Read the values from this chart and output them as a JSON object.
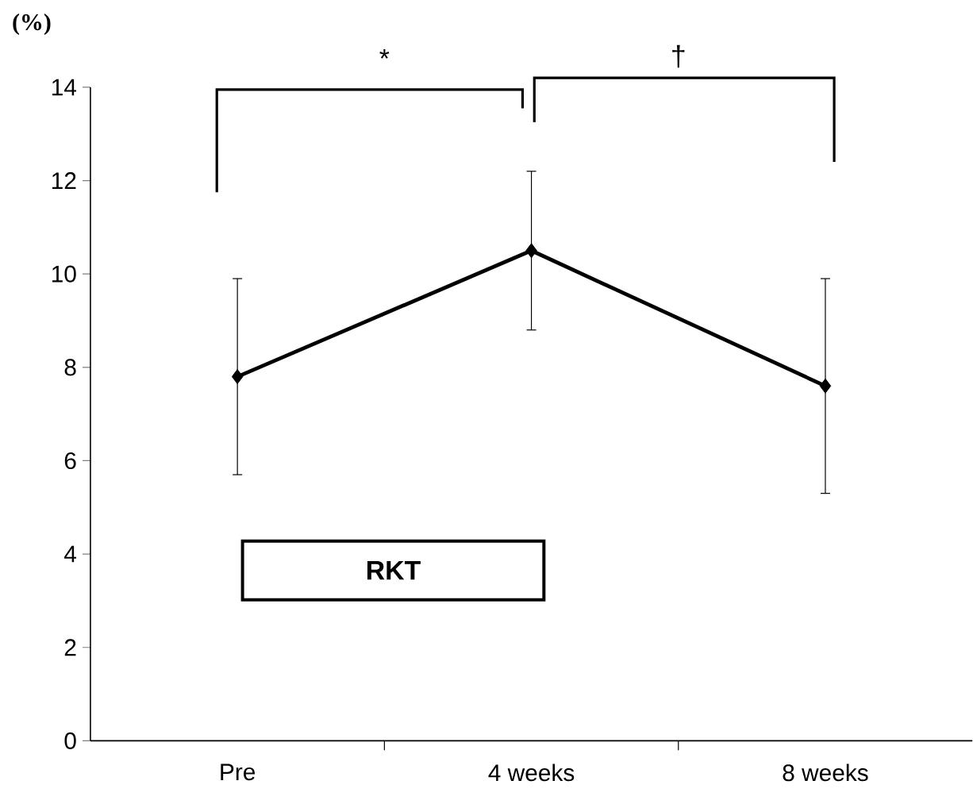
{
  "chart_data": {
    "type": "line",
    "ylabel": "(%)",
    "categories": [
      "Pre",
      "4 weeks",
      "8 weeks"
    ],
    "series": [
      {
        "color": "#000000",
        "values": [
          7.8,
          10.5,
          7.6
        ],
        "errors": [
          2.1,
          1.7,
          2.3
        ]
      }
    ],
    "ylim": [
      0,
      14
    ],
    "yticks": [
      0,
      2,
      4,
      6,
      8,
      10,
      12,
      14
    ],
    "marker": "diamond",
    "line_style": "solid",
    "grid": false,
    "annotations": [
      "*",
      "†",
      "RKT"
    ]
  }
}
